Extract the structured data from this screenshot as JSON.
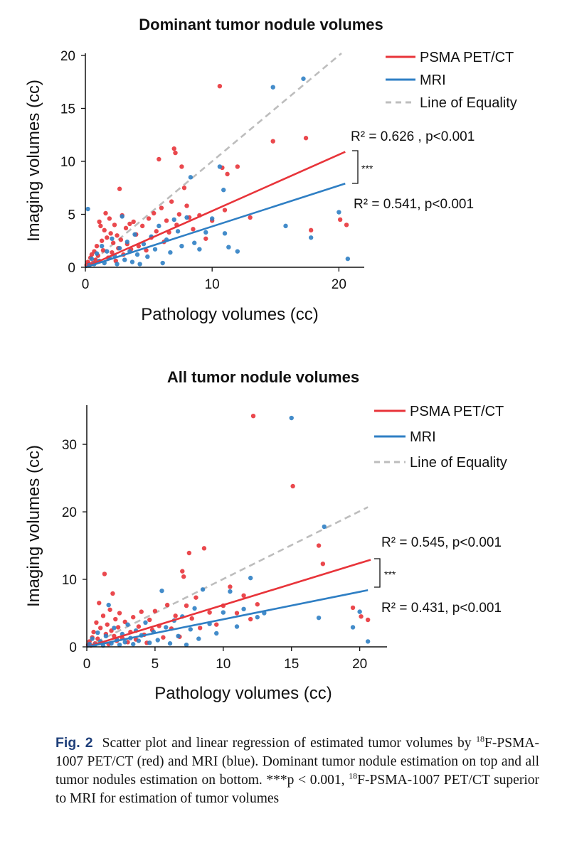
{
  "colors": {
    "pet": "#e8343a",
    "mri": "#2f7fc4",
    "equality": "#bdbdbd",
    "axis": "#111111"
  },
  "chart_data": [
    {
      "type": "scatter",
      "title": "Dominant tumor nodule volumes",
      "xlabel": "Pathology volumes (cc)",
      "ylabel": "Imaging volumes (cc)",
      "xlim": [
        0,
        22
      ],
      "ylim": [
        0,
        20
      ],
      "xticks": [
        "0",
        "10",
        "20"
      ],
      "yticks": [
        "0",
        "5",
        "10",
        "15",
        "20"
      ],
      "legend": [
        "PSMA PET/CT",
        "MRI",
        "Line of Equality"
      ],
      "legend_position": "top-right",
      "annotations": [
        "R² = 0.626 , p<0.001",
        "R² = 0.541, p<0.001",
        "***"
      ],
      "series": [
        {
          "name": "PSMA PET/CT",
          "color": "#e8343a",
          "fit": {
            "x": [
              0,
              20.5
            ],
            "y": [
              0,
              10.9
            ]
          },
          "points": [
            [
              0.1,
              0.2
            ],
            [
              0.2,
              0.5
            ],
            [
              0.3,
              0.3
            ],
            [
              0.4,
              0.9
            ],
            [
              0.5,
              1.2
            ],
            [
              0.6,
              0.4
            ],
            [
              0.7,
              1.5
            ],
            [
              0.8,
              0.7
            ],
            [
              0.9,
              2.0
            ],
            [
              1.0,
              1.1
            ],
            [
              1.1,
              4.3
            ],
            [
              1.2,
              3.9
            ],
            [
              1.3,
              2.5
            ],
            [
              1.4,
              1.6
            ],
            [
              1.5,
              3.5
            ],
            [
              1.6,
              5.1
            ],
            [
              1.7,
              2.8
            ],
            [
              1.8,
              0.9
            ],
            [
              1.9,
              4.6
            ],
            [
              2.0,
              3.2
            ],
            [
              2.1,
              1.4
            ],
            [
              2.2,
              2.3
            ],
            [
              2.3,
              4.0
            ],
            [
              2.4,
              0.6
            ],
            [
              2.5,
              3.0
            ],
            [
              2.6,
              1.8
            ],
            [
              2.7,
              7.4
            ],
            [
              2.8,
              2.6
            ],
            [
              2.9,
              4.9
            ],
            [
              3.0,
              1.2
            ],
            [
              3.2,
              3.7
            ],
            [
              3.3,
              2.2
            ],
            [
              3.5,
              4.1
            ],
            [
              3.6,
              1.7
            ],
            [
              3.8,
              4.3
            ],
            [
              4.0,
              3.1
            ],
            [
              4.2,
              2.0
            ],
            [
              4.5,
              3.9
            ],
            [
              4.8,
              1.6
            ],
            [
              5.0,
              4.6
            ],
            [
              5.2,
              2.8
            ],
            [
              5.4,
              5.1
            ],
            [
              5.6,
              3.4
            ],
            [
              5.8,
              10.2
            ],
            [
              6.0,
              5.6
            ],
            [
              6.2,
              2.4
            ],
            [
              6.4,
              4.4
            ],
            [
              6.6,
              3.3
            ],
            [
              6.8,
              6.2
            ],
            [
              7.0,
              11.2
            ],
            [
              7.1,
              10.8
            ],
            [
              7.2,
              4.0
            ],
            [
              7.4,
              5.0
            ],
            [
              7.6,
              9.5
            ],
            [
              7.8,
              7.5
            ],
            [
              8.0,
              5.8
            ],
            [
              8.2,
              4.7
            ],
            [
              8.5,
              3.6
            ],
            [
              9.0,
              4.9
            ],
            [
              9.5,
              2.7
            ],
            [
              10.0,
              4.4
            ],
            [
              10.6,
              17.1
            ],
            [
              10.8,
              9.4
            ],
            [
              11.0,
              5.4
            ],
            [
              11.2,
              8.8
            ],
            [
              12.0,
              9.5
            ],
            [
              13.0,
              4.7
            ],
            [
              14.8,
              11.9
            ],
            [
              17.4,
              12.2
            ],
            [
              17.8,
              3.5
            ],
            [
              20.1,
              4.5
            ],
            [
              20.6,
              4.0
            ]
          ]
        },
        {
          "name": "MRI",
          "color": "#2f7fc4",
          "fit": {
            "x": [
              0,
              20.5
            ],
            "y": [
              0,
              7.9
            ]
          },
          "points": [
            [
              0.2,
              5.5
            ],
            [
              0.3,
              0.2
            ],
            [
              0.5,
              0.8
            ],
            [
              0.7,
              0.3
            ],
            [
              0.9,
              1.3
            ],
            [
              1.1,
              0.6
            ],
            [
              1.3,
              2.0
            ],
            [
              1.5,
              0.4
            ],
            [
              1.7,
              1.5
            ],
            [
              1.9,
              0.9
            ],
            [
              2.1,
              2.7
            ],
            [
              2.3,
              1.1
            ],
            [
              2.5,
              0.3
            ],
            [
              2.7,
              1.8
            ],
            [
              2.9,
              4.8
            ],
            [
              3.1,
              0.7
            ],
            [
              3.3,
              2.4
            ],
            [
              3.5,
              1.5
            ],
            [
              3.7,
              0.5
            ],
            [
              3.9,
              3.1
            ],
            [
              4.1,
              1.2
            ],
            [
              4.3,
              0.3
            ],
            [
              4.6,
              2.2
            ],
            [
              4.9,
              1.0
            ],
            [
              5.2,
              2.9
            ],
            [
              5.5,
              1.7
            ],
            [
              5.8,
              3.9
            ],
            [
              6.1,
              0.4
            ],
            [
              6.4,
              2.6
            ],
            [
              6.7,
              1.4
            ],
            [
              7.0,
              4.5
            ],
            [
              7.3,
              3.4
            ],
            [
              7.6,
              2.0
            ],
            [
              8.0,
              4.7
            ],
            [
              8.3,
              8.5
            ],
            [
              8.6,
              2.3
            ],
            [
              9.0,
              1.7
            ],
            [
              9.5,
              3.3
            ],
            [
              10.0,
              4.6
            ],
            [
              10.6,
              9.5
            ],
            [
              10.9,
              7.3
            ],
            [
              11.0,
              3.2
            ],
            [
              11.3,
              1.9
            ],
            [
              12.0,
              1.5
            ],
            [
              14.8,
              17.0
            ],
            [
              15.8,
              3.9
            ],
            [
              17.2,
              17.8
            ],
            [
              17.8,
              2.8
            ],
            [
              20.0,
              5.2
            ],
            [
              20.7,
              0.8
            ]
          ]
        },
        {
          "name": "Line of Equality",
          "color": "#bdbdbd",
          "fit": {
            "x": [
              0,
              20.2
            ],
            "y": [
              0,
              20.2
            ]
          }
        }
      ]
    },
    {
      "type": "scatter",
      "title": "All tumor nodule volumes",
      "xlabel": "Pathology volumes (cc)",
      "ylabel": "Imaging volumes (cc)",
      "xlim": [
        0,
        22
      ],
      "ylim": [
        0,
        36
      ],
      "xticks": [
        "0",
        "5",
        "10",
        "15",
        "20"
      ],
      "yticks": [
        "0",
        "10",
        "20",
        "30"
      ],
      "legend": [
        "PSMA PET/CT",
        "MRI",
        "Line of Equality"
      ],
      "legend_position": "top-right",
      "annotations": [
        "R² = 0.545, p<0.001",
        "R² = 0.431, p<0.001",
        "***"
      ],
      "series": [
        {
          "name": "PSMA PET/CT",
          "color": "#e8343a",
          "fit": {
            "x": [
              0,
              20.8
            ],
            "y": [
              0,
              12.9
            ]
          },
          "points": [
            [
              0.1,
              0.3
            ],
            [
              0.2,
              0.8
            ],
            [
              0.3,
              0.2
            ],
            [
              0.4,
              1.4
            ],
            [
              0.5,
              2.2
            ],
            [
              0.6,
              0.5
            ],
            [
              0.7,
              3.6
            ],
            [
              0.8,
              1.2
            ],
            [
              0.9,
              6.5
            ],
            [
              1.0,
              2.8
            ],
            [
              1.1,
              0.6
            ],
            [
              1.2,
              4.6
            ],
            [
              1.3,
              10.8
            ],
            [
              1.4,
              1.9
            ],
            [
              1.5,
              3.3
            ],
            [
              1.6,
              0.4
            ],
            [
              1.7,
              5.5
            ],
            [
              1.8,
              2.4
            ],
            [
              1.9,
              7.9
            ],
            [
              2.0,
              1.6
            ],
            [
              2.1,
              4.1
            ],
            [
              2.2,
              0.9
            ],
            [
              2.3,
              2.9
            ],
            [
              2.4,
              5.0
            ],
            [
              2.6,
              1.3
            ],
            [
              2.8,
              3.7
            ],
            [
              3.0,
              0.7
            ],
            [
              3.2,
              2.2
            ],
            [
              3.4,
              4.4
            ],
            [
              3.6,
              1.1
            ],
            [
              3.8,
              3.0
            ],
            [
              4.0,
              5.2
            ],
            [
              4.2,
              1.8
            ],
            [
              4.4,
              0.6
            ],
            [
              4.6,
              4.0
            ],
            [
              4.8,
              2.5
            ],
            [
              5.0,
              5.3
            ],
            [
              5.3,
              3.1
            ],
            [
              5.6,
              1.4
            ],
            [
              5.9,
              6.2
            ],
            [
              6.2,
              2.7
            ],
            [
              6.5,
              4.6
            ],
            [
              6.8,
              1.5
            ],
            [
              7.0,
              11.2
            ],
            [
              7.1,
              10.4
            ],
            [
              7.3,
              6.1
            ],
            [
              7.5,
              13.9
            ],
            [
              7.7,
              4.2
            ],
            [
              8.0,
              7.3
            ],
            [
              8.3,
              2.8
            ],
            [
              8.6,
              14.6
            ],
            [
              9.0,
              5.1
            ],
            [
              9.5,
              3.3
            ],
            [
              10.0,
              6.1
            ],
            [
              10.5,
              8.9
            ],
            [
              11.0,
              5.0
            ],
            [
              11.5,
              7.6
            ],
            [
              12.0,
              4.1
            ],
            [
              12.2,
              34.2
            ],
            [
              12.5,
              6.3
            ],
            [
              15.1,
              23.8
            ],
            [
              17.0,
              15.0
            ],
            [
              17.3,
              12.3
            ],
            [
              19.5,
              5.8
            ],
            [
              20.1,
              4.5
            ],
            [
              20.6,
              4.0
            ]
          ]
        },
        {
          "name": "MRI",
          "color": "#2f7fc4",
          "fit": {
            "x": [
              0,
              20.6
            ],
            "y": [
              0,
              8.4
            ]
          },
          "points": [
            [
              0.2,
              0.4
            ],
            [
              0.4,
              1.2
            ],
            [
              0.6,
              0.3
            ],
            [
              0.8,
              2.1
            ],
            [
              1.0,
              0.8
            ],
            [
              1.2,
              0.2
            ],
            [
              1.4,
              1.6
            ],
            [
              1.6,
              6.2
            ],
            [
              1.8,
              0.5
            ],
            [
              2.0,
              2.8
            ],
            [
              2.2,
              1.1
            ],
            [
              2.4,
              0.3
            ],
            [
              2.6,
              1.9
            ],
            [
              2.8,
              0.7
            ],
            [
              3.0,
              3.3
            ],
            [
              3.2,
              1.3
            ],
            [
              3.4,
              0.4
            ],
            [
              3.6,
              2.4
            ],
            [
              3.8,
              0.9
            ],
            [
              4.0,
              1.7
            ],
            [
              4.3,
              3.6
            ],
            [
              4.6,
              0.6
            ],
            [
              4.9,
              2.2
            ],
            [
              5.2,
              1.0
            ],
            [
              5.5,
              8.3
            ],
            [
              5.8,
              2.9
            ],
            [
              6.1,
              0.5
            ],
            [
              6.4,
              3.9
            ],
            [
              6.7,
              1.6
            ],
            [
              7.0,
              4.5
            ],
            [
              7.3,
              0.3
            ],
            [
              7.6,
              2.6
            ],
            [
              7.9,
              5.7
            ],
            [
              8.2,
              1.2
            ],
            [
              8.5,
              8.5
            ],
            [
              9.0,
              3.4
            ],
            [
              9.5,
              2.0
            ],
            [
              10.0,
              5.1
            ],
            [
              10.5,
              8.2
            ],
            [
              11.0,
              3.0
            ],
            [
              11.5,
              5.6
            ],
            [
              12.0,
              10.2
            ],
            [
              12.5,
              4.4
            ],
            [
              13.0,
              5.0
            ],
            [
              15.0,
              33.9
            ],
            [
              17.0,
              4.3
            ],
            [
              17.4,
              17.8
            ],
            [
              19.5,
              2.9
            ],
            [
              20.0,
              5.2
            ],
            [
              20.6,
              0.8
            ]
          ]
        },
        {
          "name": "Line of Equality",
          "color": "#bdbdbd",
          "fit": {
            "x": [
              0,
              20.6
            ],
            "y": [
              0,
              20.7
            ]
          }
        }
      ]
    }
  ],
  "caption": {
    "label": "Fig. 2",
    "part1": "Scatter plot and linear regression of estimated tumor volumes by ",
    "sup1": "18",
    "part2": "F-PSMA-1007 PET/CT (red) and MRI (blue). Dominant tumor nodule estimation on top and all tumor nodules estimation on bottom. ***p < 0.001, ",
    "sup2": "18",
    "part3": "F-PSMA-1007 PET/CT superior to MRI for estimation of tumor volumes"
  }
}
